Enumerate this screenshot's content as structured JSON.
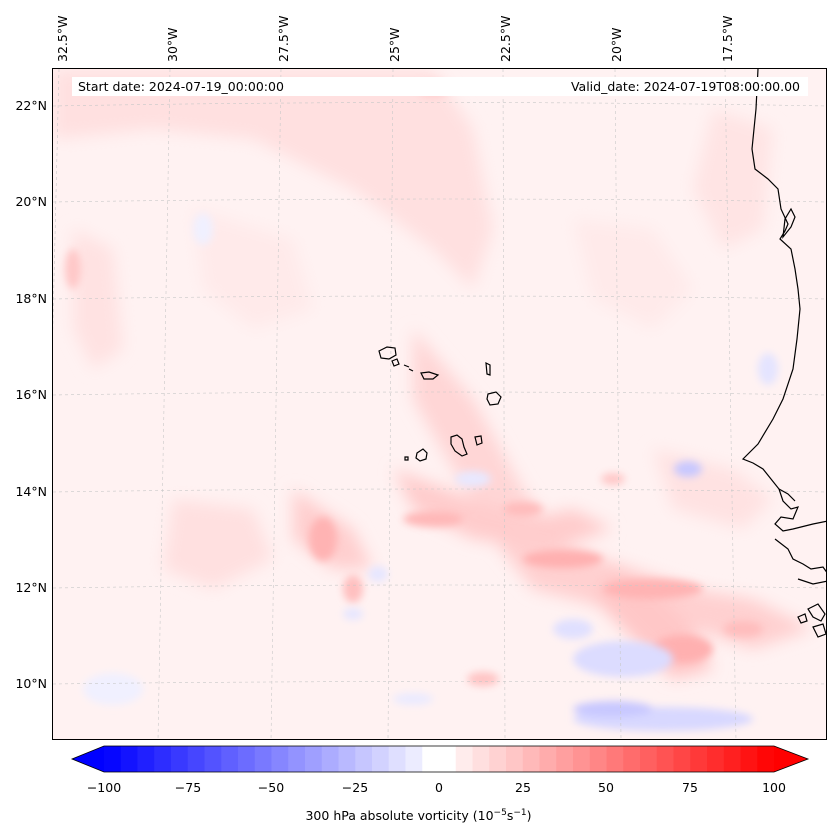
{
  "map": {
    "lon_labels": [
      "32.5°W",
      "30°W",
      "27.5°W",
      "25°W",
      "22.5°W",
      "20°W",
      "17.5°W"
    ],
    "lat_labels": [
      "22°N",
      "20°N",
      "18°N",
      "16°N",
      "14°N",
      "12°N",
      "10°N"
    ],
    "start_date": "Start date: 2024-07-19_00:00:00",
    "valid_date": "Valid_date: 2024-07-19T08:00:00.00",
    "field": "300 hPa absolute vorticity",
    "colors": {
      "positive": "#ff0000",
      "negative": "#0000ff",
      "neutral": "#ffffff",
      "coastline": "#000000",
      "gridline": "#c8c8c8"
    }
  },
  "colorbar": {
    "min": -100,
    "max": 100,
    "ticks": [
      "−100",
      "−75",
      "−50",
      "−25",
      "0",
      "25",
      "50",
      "75",
      "100"
    ],
    "label_main": "300 hPa absolute vorticity (10",
    "label_sup1": "−5",
    "label_mid": "s",
    "label_sup2": "−1",
    "label_end": ")"
  }
}
